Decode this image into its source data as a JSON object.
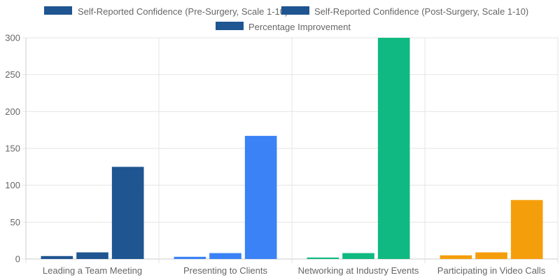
{
  "chart_data": {
    "type": "bar",
    "categories": [
      "Leading a Team Meeting",
      "Presenting to Clients",
      "Networking at Industry Events",
      "Participating in Video Calls"
    ],
    "series": [
      {
        "name": "Self-Reported Confidence (Pre-Surgery, Scale 1-10)",
        "values": [
          4,
          3,
          2,
          5
        ]
      },
      {
        "name": "Self-Reported Confidence (Post-Surgery, Scale 1-10)",
        "values": [
          9,
          8,
          8,
          9
        ]
      },
      {
        "name": "Percentage Improvement",
        "values": [
          125,
          167,
          300,
          80
        ]
      }
    ],
    "bar_colors": [
      "#1f5591",
      "#3b82f6",
      "#10b981",
      "#f59e0b"
    ],
    "legend_color": "#1f5591",
    "ylim": [
      0,
      300
    ],
    "yticks": [
      0,
      50,
      100,
      150,
      200,
      250,
      300
    ],
    "grid": true,
    "legend_position": "top",
    "title": "",
    "xlabel": "",
    "ylabel": ""
  }
}
